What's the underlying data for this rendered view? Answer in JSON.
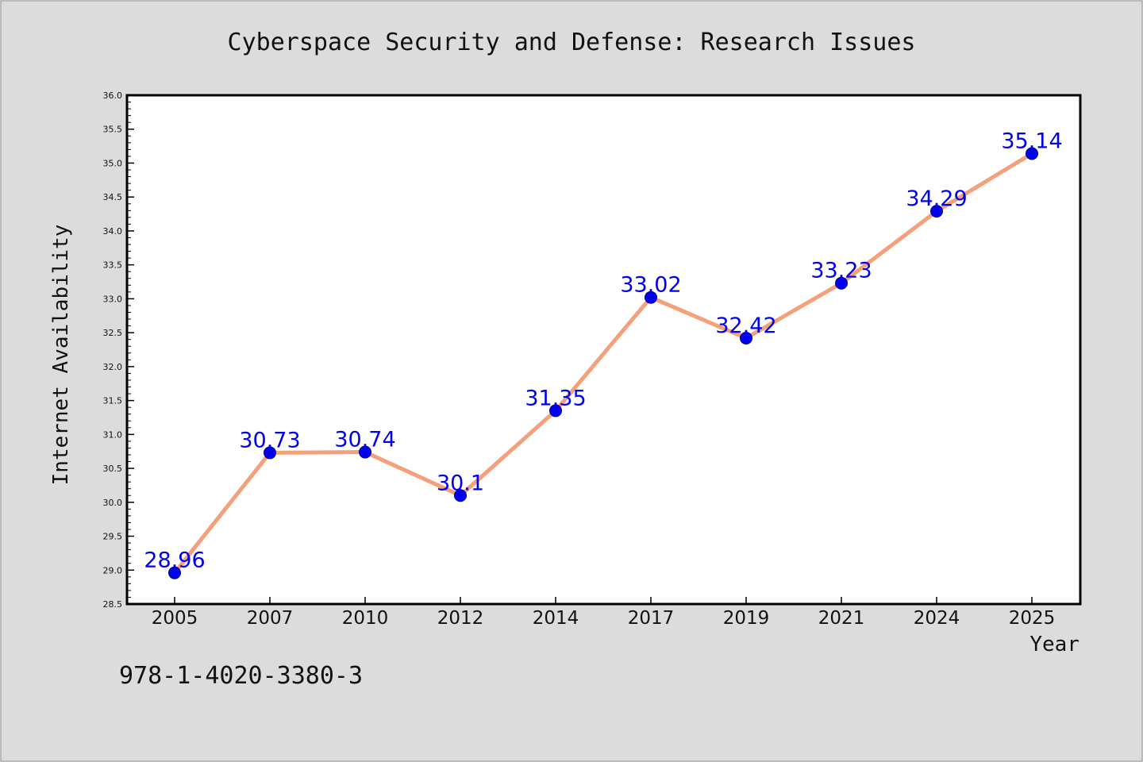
{
  "chart_data": {
    "type": "line",
    "title": "Cyberspace Security and Defense: Research Issues",
    "xlabel": "Year",
    "ylabel": "Internet Availability",
    "categories": [
      "2005",
      "2007",
      "2010",
      "2012",
      "2014",
      "2017",
      "2019",
      "2021",
      "2024",
      "2025"
    ],
    "values": [
      28.96,
      30.73,
      30.74,
      30.1,
      31.35,
      33.02,
      32.42,
      33.23,
      34.29,
      35.14
    ],
    "value_labels": [
      "28.96",
      "30.73",
      "30.74",
      "30.1",
      "31.35",
      "33.02",
      "32.42",
      "33.23",
      "34.29",
      "35.14"
    ],
    "ylim": [
      28.5,
      36.0
    ],
    "yticks": [
      "28.5",
      "29.0",
      "29.5",
      "30.0",
      "30.5",
      "31.0",
      "31.5",
      "32.0",
      "32.5",
      "33.0",
      "33.5",
      "34.0",
      "34.5",
      "35.0",
      "35.5",
      "36.0"
    ],
    "grid": false,
    "legend": "none",
    "colors": {
      "line": "#f4a07a",
      "marker": "#0000ee",
      "marker_edge": "#00008b",
      "data_label": "#0000ee",
      "axis": "#000000",
      "background": "#dcdcdc",
      "plot_background": "#ffffff"
    }
  },
  "footnote": "978-1-4020-3380-3"
}
